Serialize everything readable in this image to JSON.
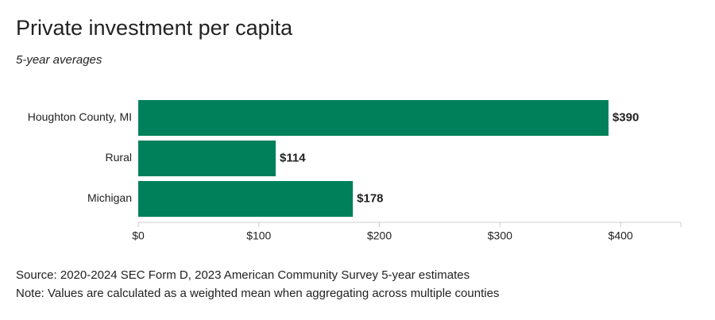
{
  "chart_data": {
    "type": "hbar",
    "title": "Private investment per capita",
    "subtitle": "5-year averages",
    "categories": [
      "Houghton County, MI",
      "Rural",
      "Michigan"
    ],
    "values": [
      390,
      114,
      178
    ],
    "value_labels": [
      "$390",
      "$114",
      "$178"
    ],
    "color": "#00805a",
    "xlim": [
      0,
      450
    ],
    "xticks": [
      {
        "value": 0,
        "label": "$0"
      },
      {
        "value": 100,
        "label": "$100"
      },
      {
        "value": 200,
        "label": "$200"
      },
      {
        "value": 300,
        "label": "$300"
      },
      {
        "value": 400,
        "label": "$400"
      }
    ],
    "source": "Source: 2020-2024 SEC Form D, 2023 American Community Survey 5-year estimates",
    "note": "Note: Values are calculated as a weighted mean when aggregating across multiple counties"
  }
}
